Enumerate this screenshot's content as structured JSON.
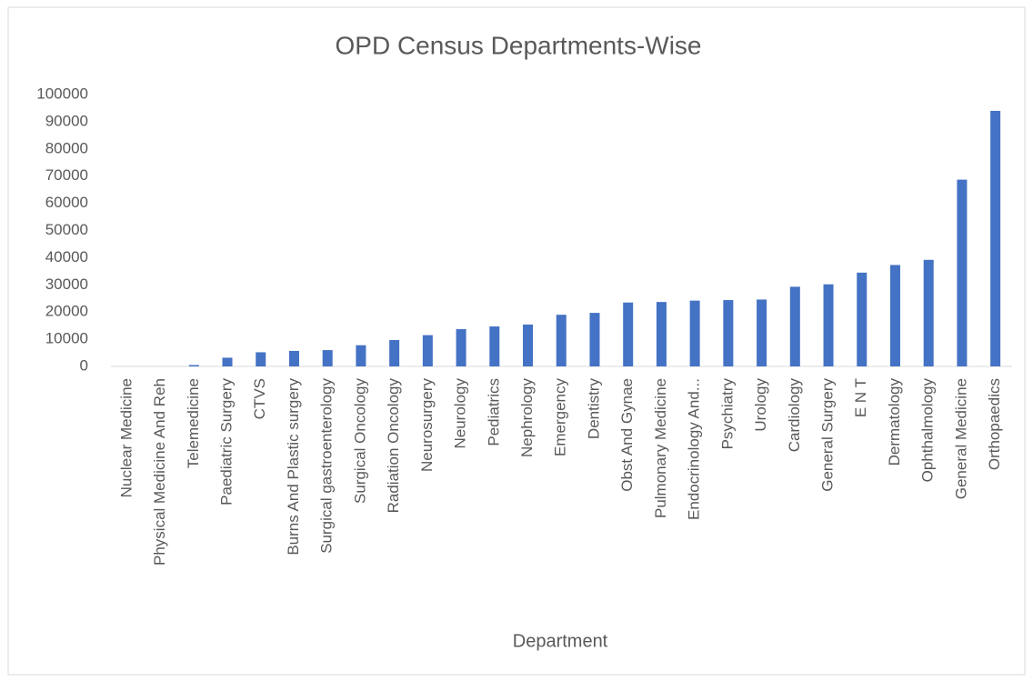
{
  "chart_data": {
    "type": "bar",
    "title": "OPD Census Departments-Wise",
    "x_label": "Department",
    "categories": [
      "Nuclear Medicine",
      "Physical Medicine And Reh",
      "Telemedicine",
      "Paediatric Surgery",
      "CTVS",
      "Burns And Plastic surgery",
      "Surgical gastroenterology",
      "Surgical Oncology",
      "Radiation Oncology",
      "Neurosurgery",
      "Neurology",
      "Pediatrics",
      "Nephrology",
      "Emergency",
      "Dentistry",
      "Obst And Gynae",
      "Pulmonary Medicine",
      "Endocrinology And...",
      "Psychiatry",
      "Urology",
      "Cardiology",
      "General Surgery",
      "E N T",
      "Dermatology",
      "Ophthalmology",
      "General Medicine",
      "Orthopaedics"
    ],
    "values": [
      0,
      0,
      500,
      3200,
      5200,
      5700,
      6000,
      7800,
      9700,
      11500,
      13700,
      14700,
      15400,
      19000,
      19700,
      23500,
      23700,
      24200,
      24400,
      24600,
      29300,
      30200,
      34500,
      37300,
      39200,
      68700,
      94000
    ],
    "color": "#4472c4",
    "ylim": [
      0,
      100000
    ],
    "yticks": [
      0,
      10000,
      20000,
      30000,
      40000,
      50000,
      60000,
      70000,
      80000,
      90000,
      100000
    ],
    "grid": false
  }
}
